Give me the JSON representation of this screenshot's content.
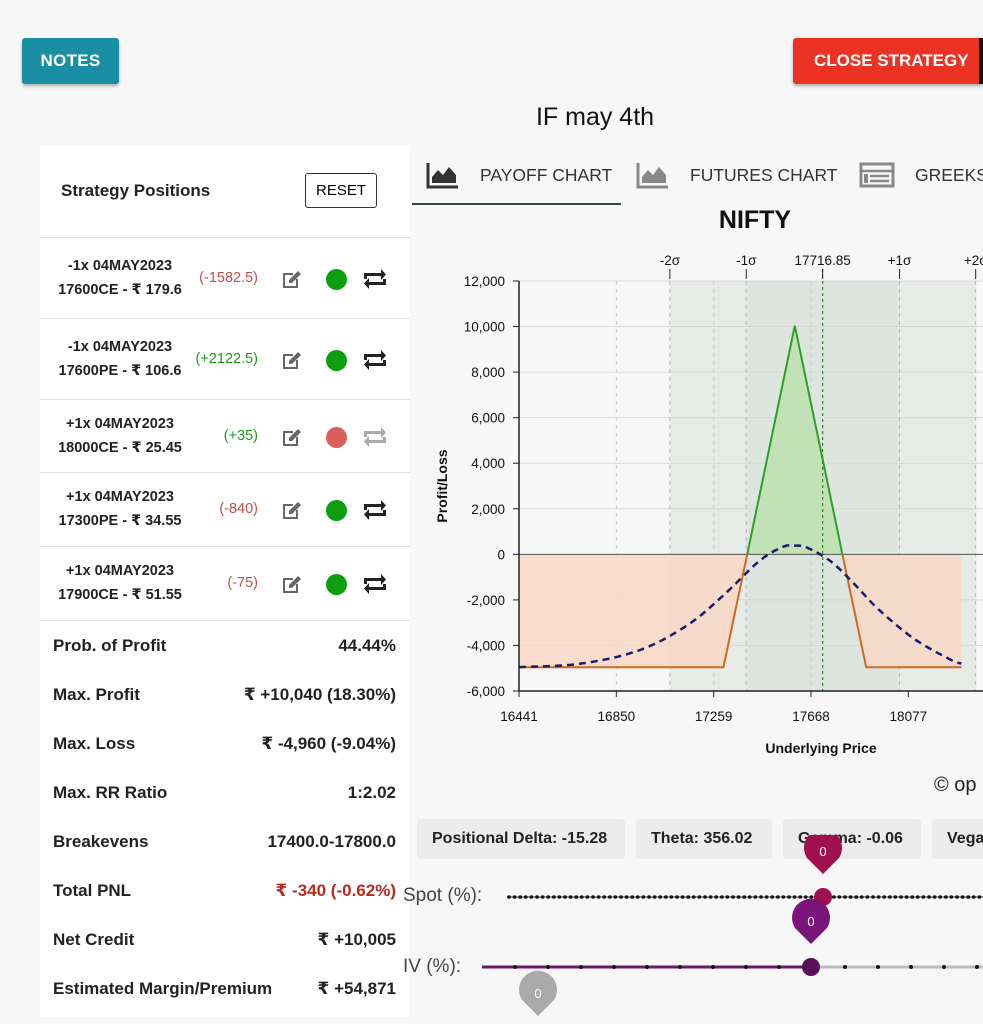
{
  "header": {
    "notes_label": "NOTES",
    "close_label": "CLOSE STRATEGY",
    "title": "IF may 4th"
  },
  "positions_panel": {
    "title": "Strategy Positions",
    "reset_label": "RESET",
    "rows": [
      {
        "line1": "-1x  04MAY2023",
        "line2": "17600CE  - ₹ 179.6",
        "pnl": "(-1582.5)",
        "pnl_sign": "neg",
        "active": true
      },
      {
        "line1": "-1x  04MAY2023",
        "line2": "17600PE  - ₹ 106.6",
        "pnl": "(+2122.5)",
        "pnl_sign": "pos",
        "active": true
      },
      {
        "line1": "+1x  04MAY2023",
        "line2": "18000CE  - ₹ 25.45",
        "pnl": "(+35)",
        "pnl_sign": "pos",
        "active": false
      },
      {
        "line1": "+1x  04MAY2023",
        "line2": "17300PE  - ₹ 34.55",
        "pnl": "(-840)",
        "pnl_sign": "neg",
        "active": true
      },
      {
        "line1": "+1x  04MAY2023",
        "line2": "17900CE  - ₹ 51.55",
        "pnl": "(-75)",
        "pnl_sign": "neg",
        "active": true
      }
    ]
  },
  "stats": [
    {
      "label": "Prob. of Profit",
      "value": "44.44%"
    },
    {
      "label": "Max. Profit",
      "value": "₹ +10,040 (18.30%)"
    },
    {
      "label": "Max. Loss",
      "value": "₹ -4,960 (-9.04%)"
    },
    {
      "label": "Max. RR Ratio",
      "value": "1:2.02"
    },
    {
      "label": "Breakevens",
      "value": "17400.0-17800.0"
    },
    {
      "label": "Total PNL",
      "value": "₹ -340 (-0.62%)",
      "color": "#b52b20"
    },
    {
      "label": "Net Credit",
      "value": "₹ +10,005"
    },
    {
      "label": "Estimated Margin/Premium",
      "value": "₹ +54,871"
    }
  ],
  "tabs": [
    {
      "label": "PAYOFF CHART",
      "icon": "area-chart-icon",
      "active": true
    },
    {
      "label": "FUTURES CHART",
      "icon": "area-chart-icon",
      "active": false
    },
    {
      "label": "GREEKS",
      "icon": "table-icon",
      "active": false
    }
  ],
  "chart_data": {
    "type": "area",
    "title": "NIFTY",
    "xlabel": "Underlying Price",
    "ylabel": "Profit/Loss",
    "xlim": [
      16441,
      18300
    ],
    "ylim": [
      -6000,
      12000
    ],
    "x_ticks": [
      16441,
      16850,
      17259,
      17668,
      18077
    ],
    "x_tick_labels": [
      "16441",
      "16850",
      "17259",
      "17668",
      "18077"
    ],
    "y_ticks": [
      -6000,
      -4000,
      -2000,
      0,
      2000,
      4000,
      6000,
      8000,
      10000,
      12000
    ],
    "y_tick_labels": [
      "-6,000",
      "-4,000",
      "-2,000",
      "0",
      "2,000",
      "4,000",
      "6,000",
      "8,000",
      "10,000",
      "12,000"
    ],
    "sigma_labels": [
      {
        "label": "-2σ",
        "x": 17075
      },
      {
        "label": "-1σ",
        "x": 17396
      },
      {
        "label": "17716.85",
        "x": 17716.85
      },
      {
        "label": "+1σ",
        "x": 18040
      },
      {
        "label": "+2σ",
        "x": 18360
      }
    ],
    "sigma_bands": [
      {
        "from": 17075,
        "to": 18360,
        "color": "#e6ebe8"
      },
      {
        "from": 17396,
        "to": 18040,
        "color": "#dde5df"
      }
    ],
    "spot": 17716.85,
    "series": [
      {
        "type": "expiry_payoff",
        "x": [
          16441,
          17300,
          17400,
          17600,
          17800,
          17900,
          18300
        ],
        "values": [
          -4960,
          -4960,
          0,
          10040,
          0,
          -4960,
          -4960
        ],
        "profit_color": "#2e9e2e",
        "loss_color": "#d2691e"
      },
      {
        "type": "target_payoff",
        "x": [
          16441,
          16700,
          16950,
          17150,
          17300,
          17450,
          17550,
          17600,
          17650,
          17750,
          17850,
          17950,
          18100,
          18250,
          18300
        ],
        "values": [
          -4950,
          -4800,
          -4200,
          -3100,
          -1800,
          -300,
          330,
          380,
          300,
          -300,
          -1300,
          -2400,
          -3700,
          -4600,
          -4800
        ],
        "color": "#1a1a6e"
      }
    ],
    "grid": true,
    "legend": "none"
  },
  "copyright": "© op",
  "greeks": [
    {
      "label": "Positional Delta: -15.28"
    },
    {
      "label": "Theta: 356.02"
    },
    {
      "label": "Gamma: -0.06"
    },
    {
      "label": "Vega"
    }
  ],
  "sliders": {
    "spot_label": "Spot (%):",
    "spot_value": "0",
    "iv_label": "IV (%):",
    "iv_value": "0",
    "days_value": "0"
  }
}
